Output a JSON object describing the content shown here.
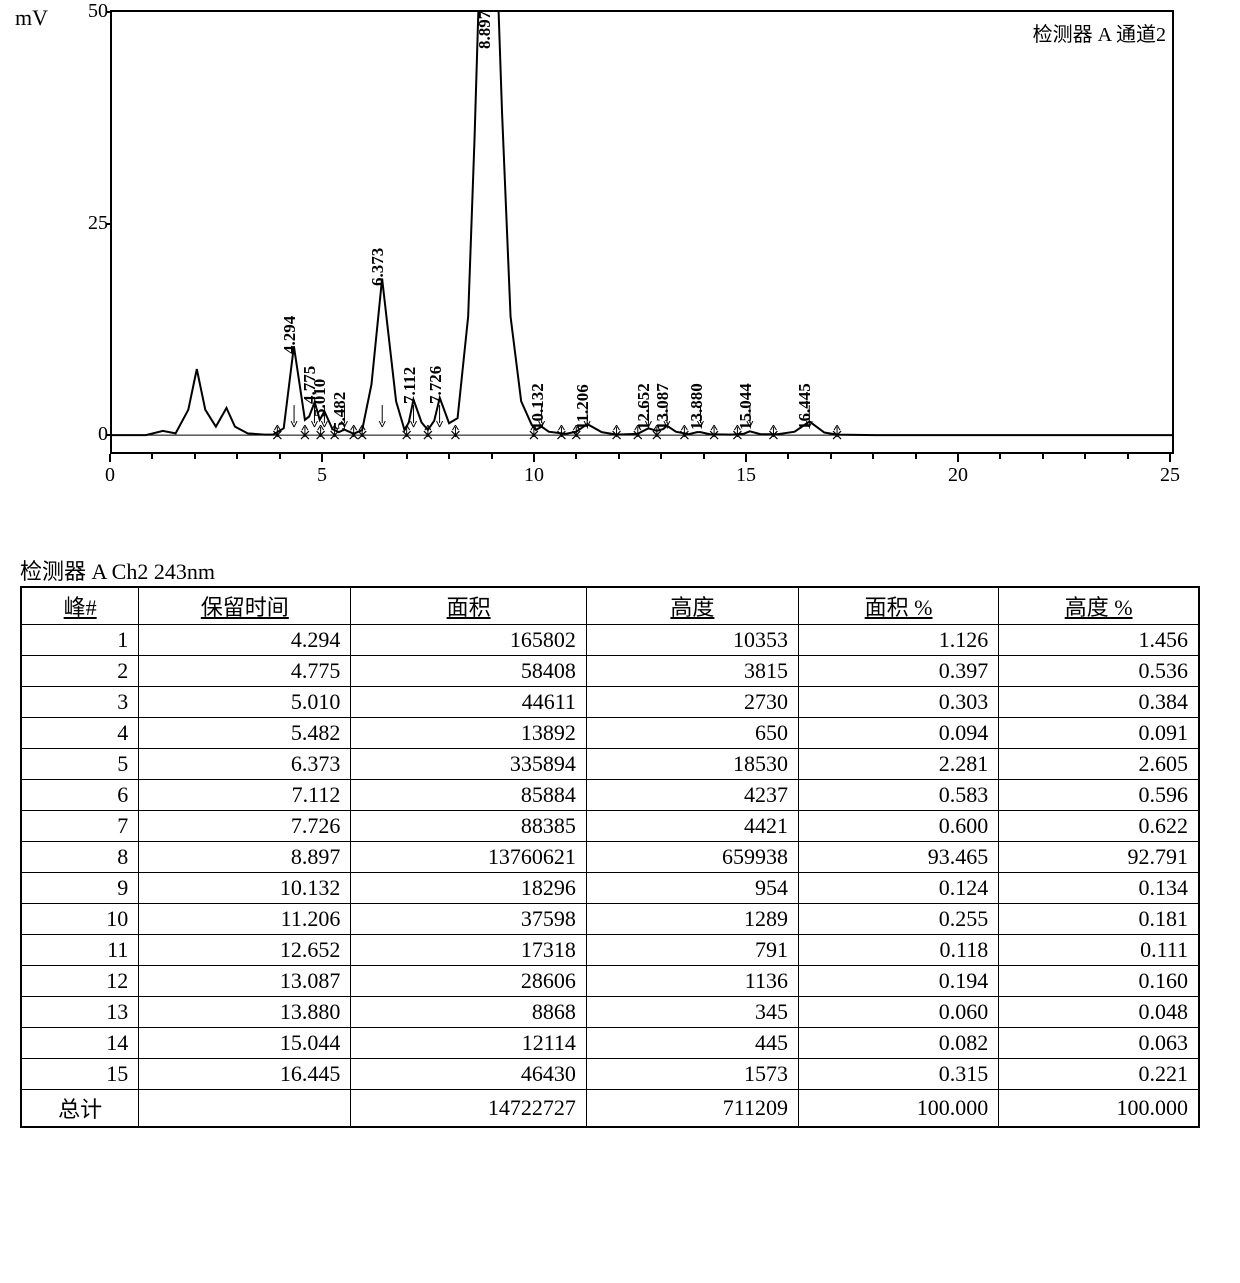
{
  "chart": {
    "type": "chromatogram",
    "y_unit": "mV",
    "legend": "检测器 A 通道2",
    "background_color": "#ffffff",
    "line_color": "#000000",
    "border_color": "#000000",
    "xlim": [
      0,
      25
    ],
    "ylim": [
      -2,
      50
    ],
    "y_ticks": [
      0,
      25,
      50
    ],
    "x_ticklabels": [
      "0",
      "5",
      "10",
      "15",
      "20",
      "25"
    ],
    "x_tickvalues": [
      0,
      5,
      10,
      15,
      20,
      25
    ],
    "x_minor": [
      1,
      2,
      3,
      4,
      6,
      7,
      8,
      9,
      11,
      12,
      13,
      14,
      16,
      17,
      18,
      19,
      21,
      22,
      23,
      24
    ],
    "y_tick_fontsize": 20,
    "x_tick_fontsize": 20,
    "peak_label_fontsize": 17,
    "baseline_y": 0,
    "curve_points": [
      [
        0.0,
        0.0
      ],
      [
        0.8,
        0.0
      ],
      [
        1.2,
        0.5
      ],
      [
        1.5,
        0.2
      ],
      [
        1.8,
        3.0
      ],
      [
        2.0,
        7.8
      ],
      [
        2.2,
        3.0
      ],
      [
        2.45,
        1.0
      ],
      [
        2.7,
        3.2
      ],
      [
        2.9,
        1.0
      ],
      [
        3.2,
        0.2
      ],
      [
        3.6,
        0.05
      ],
      [
        3.8,
        0.05
      ],
      [
        4.05,
        0.8
      ],
      [
        4.29,
        10.5
      ],
      [
        4.55,
        1.8
      ],
      [
        4.65,
        2.2
      ],
      [
        4.78,
        3.9
      ],
      [
        4.9,
        1.8
      ],
      [
        5.01,
        2.8
      ],
      [
        5.2,
        0.7
      ],
      [
        5.35,
        0.35
      ],
      [
        5.48,
        0.65
      ],
      [
        5.7,
        0.15
      ],
      [
        5.9,
        0.6
      ],
      [
        6.12,
        6.0
      ],
      [
        6.37,
        18.5
      ],
      [
        6.7,
        4.0
      ],
      [
        6.9,
        0.6
      ],
      [
        7.0,
        1.5
      ],
      [
        7.11,
        4.2
      ],
      [
        7.3,
        1.5
      ],
      [
        7.45,
        0.6
      ],
      [
        7.6,
        1.7
      ],
      [
        7.73,
        4.4
      ],
      [
        7.95,
        1.4
      ],
      [
        8.15,
        2.0
      ],
      [
        8.4,
        14.0
      ],
      [
        8.55,
        35.0
      ],
      [
        8.7,
        60.0
      ],
      [
        8.9,
        60.0
      ],
      [
        9.05,
        60.0
      ],
      [
        9.2,
        38.0
      ],
      [
        9.4,
        14.0
      ],
      [
        9.65,
        4.0
      ],
      [
        9.9,
        1.2
      ],
      [
        10.0,
        0.6
      ],
      [
        10.13,
        1.0
      ],
      [
        10.3,
        0.4
      ],
      [
        10.7,
        0.15
      ],
      [
        10.95,
        0.4
      ],
      [
        11.21,
        1.3
      ],
      [
        11.55,
        0.35
      ],
      [
        11.9,
        0.05
      ],
      [
        12.4,
        0.15
      ],
      [
        12.65,
        0.8
      ],
      [
        12.85,
        0.5
      ],
      [
        13.0,
        0.7
      ],
      [
        13.09,
        1.1
      ],
      [
        13.3,
        0.4
      ],
      [
        13.6,
        0.1
      ],
      [
        13.8,
        0.35
      ],
      [
        13.88,
        0.35
      ],
      [
        14.1,
        0.1
      ],
      [
        14.6,
        0.05
      ],
      [
        14.9,
        0.15
      ],
      [
        15.04,
        0.45
      ],
      [
        15.3,
        0.1
      ],
      [
        15.7,
        0.1
      ],
      [
        16.1,
        0.4
      ],
      [
        16.45,
        1.6
      ],
      [
        16.8,
        0.3
      ],
      [
        17.1,
        0.05
      ],
      [
        18.0,
        0.0
      ],
      [
        25.0,
        0.0
      ]
    ],
    "peaks": [
      {
        "rt": "4.294",
        "x": 4.294,
        "lab_y": 12,
        "mark": true
      },
      {
        "rt": "4.775",
        "x": 4.775,
        "lab_y": 6,
        "mark": true
      },
      {
        "rt": "5.010",
        "x": 5.01,
        "lab_y": 4.5,
        "mark": true
      },
      {
        "rt": "5.482",
        "x": 5.482,
        "lab_y": 3,
        "mark": true
      },
      {
        "rt": "6.373",
        "x": 6.373,
        "lab_y": 20,
        "mark": true
      },
      {
        "rt": "7.112",
        "x": 7.112,
        "lab_y": 6,
        "mark": true
      },
      {
        "rt": "7.726",
        "x": 7.726,
        "lab_y": 6,
        "mark": true
      },
      {
        "rt": "8.897",
        "x": 8.897,
        "lab_y": 48,
        "mark": false,
        "truncated": true
      },
      {
        "rt": "10.132",
        "x": 10.132,
        "lab_y": 3,
        "mark": true
      },
      {
        "rt": "11.206",
        "x": 11.206,
        "lab_y": 3,
        "mark": true
      },
      {
        "rt": "12.652",
        "x": 12.652,
        "lab_y": 3,
        "mark": true
      },
      {
        "rt": "13.087",
        "x": 13.087,
        "lab_y": 3,
        "mark": true
      },
      {
        "rt": "13.880",
        "x": 13.88,
        "lab_y": 3,
        "mark": true
      },
      {
        "rt": "15.044",
        "x": 15.044,
        "lab_y": 3,
        "mark": true
      },
      {
        "rt": "16.445",
        "x": 16.445,
        "lab_y": 3,
        "mark": true
      }
    ],
    "integration_marks_x": [
      3.9,
      4.55,
      4.92,
      5.25,
      5.7,
      5.9,
      6.95,
      7.45,
      8.1,
      9.95,
      10.6,
      10.95,
      11.9,
      12.4,
      12.85,
      13.5,
      14.2,
      14.75,
      15.6,
      17.1
    ],
    "integration_arrow_down_x": [
      4.294,
      4.775,
      5.01,
      5.482,
      6.373,
      7.112,
      7.726,
      10.132,
      11.206,
      12.652,
      13.087,
      13.88,
      15.044,
      16.445
    ]
  },
  "table": {
    "title": "检测器 A Ch2 243nm",
    "columns": [
      "峰#",
      "保留时间",
      "面积",
      "高度",
      "面积 %",
      "高度 %"
    ],
    "total_label": "总计",
    "col_aligns": [
      "right",
      "right",
      "right",
      "right",
      "right",
      "right"
    ],
    "col_widths_pct": [
      10,
      18,
      20,
      18,
      17,
      17
    ],
    "rows": [
      [
        "1",
        "4.294",
        "165802",
        "10353",
        "1.126",
        "1.456"
      ],
      [
        "2",
        "4.775",
        "58408",
        "3815",
        "0.397",
        "0.536"
      ],
      [
        "3",
        "5.010",
        "44611",
        "2730",
        "0.303",
        "0.384"
      ],
      [
        "4",
        "5.482",
        "13892",
        "650",
        "0.094",
        "0.091"
      ],
      [
        "5",
        "6.373",
        "335894",
        "18530",
        "2.281",
        "2.605"
      ],
      [
        "6",
        "7.112",
        "85884",
        "4237",
        "0.583",
        "0.596"
      ],
      [
        "7",
        "7.726",
        "88385",
        "4421",
        "0.600",
        "0.622"
      ],
      [
        "8",
        "8.897",
        "13760621",
        "659938",
        "93.465",
        "92.791"
      ],
      [
        "9",
        "10.132",
        "18296",
        "954",
        "0.124",
        "0.134"
      ],
      [
        "10",
        "11.206",
        "37598",
        "1289",
        "0.255",
        "0.181"
      ],
      [
        "11",
        "12.652",
        "17318",
        "791",
        "0.118",
        "0.111"
      ],
      [
        "12",
        "13.087",
        "28606",
        "1136",
        "0.194",
        "0.160"
      ],
      [
        "13",
        "13.880",
        "8868",
        "345",
        "0.060",
        "0.048"
      ],
      [
        "14",
        "15.044",
        "12114",
        "445",
        "0.082",
        "0.063"
      ],
      [
        "15",
        "16.445",
        "46430",
        "1573",
        "0.315",
        "0.221"
      ]
    ],
    "totals": [
      "",
      "",
      "14722727",
      "711209",
      "100.000",
      "100.000"
    ]
  }
}
